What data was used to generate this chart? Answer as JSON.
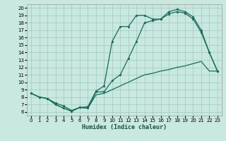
{
  "xlabel": "Humidex (Indice chaleur)",
  "xlim": [
    -0.5,
    23.5
  ],
  "ylim": [
    5.5,
    20.5
  ],
  "xticks": [
    0,
    1,
    2,
    3,
    4,
    5,
    6,
    7,
    8,
    9,
    10,
    11,
    12,
    13,
    14,
    15,
    16,
    17,
    18,
    19,
    20,
    21,
    22,
    23
  ],
  "yticks": [
    6,
    7,
    8,
    9,
    10,
    11,
    12,
    13,
    14,
    15,
    16,
    17,
    18,
    19,
    20
  ],
  "bg_color": "#c8e8e0",
  "grid_color": "#a0c8c0",
  "line_color": "#1a6b5a",
  "curve1_x": [
    0,
    1,
    2,
    3,
    4,
    5,
    6,
    7,
    8,
    9,
    10,
    11,
    12,
    13,
    14,
    15,
    16,
    17,
    18,
    19,
    20,
    21,
    22,
    23
  ],
  "curve1_y": [
    8.5,
    8.0,
    7.8,
    7.2,
    6.8,
    6.2,
    6.6,
    6.7,
    8.8,
    9.5,
    15.5,
    17.5,
    17.5,
    19.0,
    19.0,
    18.5,
    18.5,
    19.5,
    19.8,
    19.5,
    18.8,
    17.0,
    14.0,
    11.5
  ],
  "curve2_x": [
    0,
    1,
    2,
    3,
    4,
    5,
    6,
    7,
    8,
    9,
    10,
    11,
    12,
    13,
    14,
    15,
    16,
    17,
    18,
    19,
    20,
    21,
    22,
    23
  ],
  "curve2_y": [
    8.5,
    8.0,
    7.8,
    7.0,
    6.5,
    6.1,
    6.6,
    6.5,
    8.7,
    8.7,
    10.2,
    11.0,
    13.2,
    15.5,
    18.0,
    18.3,
    18.5,
    19.2,
    19.5,
    19.3,
    18.5,
    16.7,
    14.0,
    11.5
  ],
  "curve3_x": [
    0,
    1,
    2,
    3,
    4,
    5,
    6,
    7,
    8,
    9,
    10,
    11,
    12,
    13,
    14,
    15,
    16,
    17,
    18,
    19,
    20,
    21,
    22,
    23
  ],
  "curve3_y": [
    8.5,
    8.0,
    7.8,
    7.0,
    6.5,
    6.1,
    6.6,
    6.5,
    8.3,
    8.5,
    9.0,
    9.5,
    10.0,
    10.5,
    11.0,
    11.2,
    11.5,
    11.7,
    12.0,
    12.2,
    12.5,
    12.8,
    11.5,
    11.5
  ]
}
